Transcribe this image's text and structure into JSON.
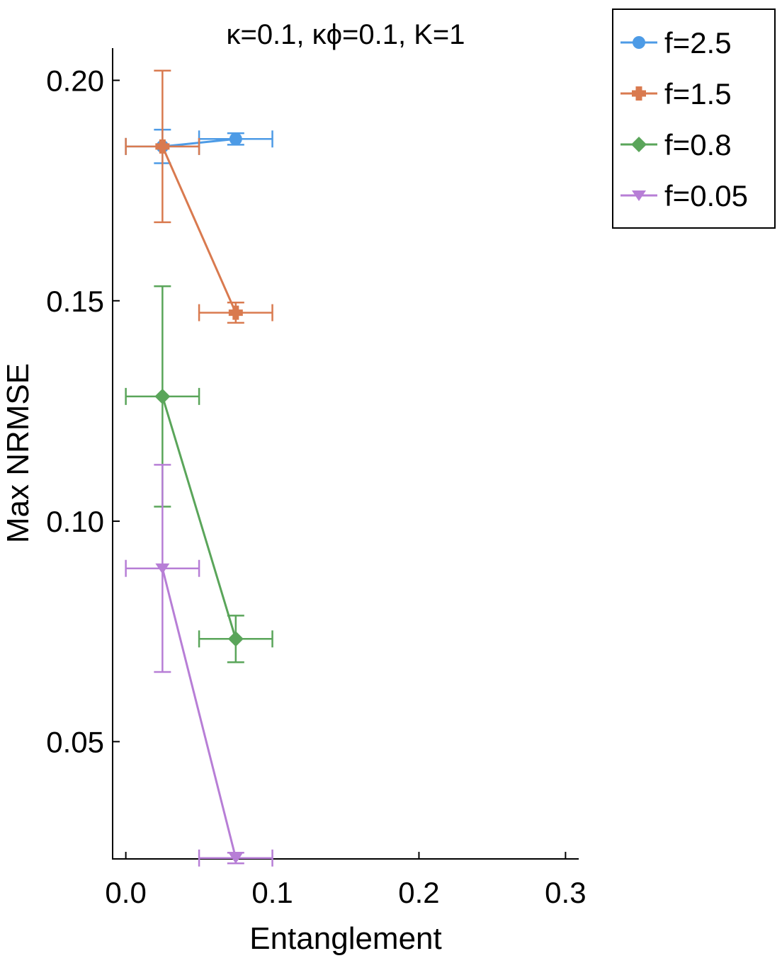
{
  "chart_data": {
    "type": "line",
    "title": "κ=0.1, κϕ=0.1, K=1",
    "xlabel": "Entanglement",
    "ylabel": "Max NRMSE",
    "xlim": [
      -0.009,
      0.309
    ],
    "ylim": [
      0.0234,
      0.2073
    ],
    "x_ticks": [
      0.0,
      0.1,
      0.2,
      0.3
    ],
    "x_tick_labels": [
      "0.0",
      "0.1",
      "0.2",
      "0.3"
    ],
    "y_ticks": [
      0.05,
      0.1,
      0.15,
      0.2
    ],
    "y_tick_labels": [
      "0.05",
      "0.10",
      "0.15",
      "0.20"
    ],
    "grid": false,
    "legend_position": "outside-top-right",
    "series": [
      {
        "name": "f=2.5",
        "color": "#4d9be6",
        "marker": "circle",
        "points": [
          {
            "x": 0.025,
            "y": 0.185,
            "xerr": 0.025,
            "yerr": 0.0038
          },
          {
            "x": 0.075,
            "y": 0.1867,
            "xerr": 0.025,
            "yerr": 0.0013
          }
        ]
      },
      {
        "name": "f=1.5",
        "color": "#d97a4f",
        "marker": "cross",
        "points": [
          {
            "x": 0.025,
            "y": 0.185,
            "xerr": 0.025,
            "yerr": 0.0172
          },
          {
            "x": 0.075,
            "y": 0.1473,
            "xerr": 0.025,
            "yerr": 0.0023
          }
        ]
      },
      {
        "name": "f=0.8",
        "color": "#5aa55a",
        "marker": "diamond",
        "points": [
          {
            "x": 0.025,
            "y": 0.1283,
            "xerr": 0.025,
            "yerr": 0.025
          },
          {
            "x": 0.075,
            "y": 0.0733,
            "xerr": 0.025,
            "yerr": 0.0053
          }
        ]
      },
      {
        "name": "f=0.05",
        "color": "#b77ed6",
        "marker": "triangle-down",
        "points": [
          {
            "x": 0.025,
            "y": 0.0893,
            "xerr": 0.025,
            "yerr": 0.0235
          },
          {
            "x": 0.075,
            "y": 0.0236,
            "xerr": 0.025,
            "yerr": 0.0012
          }
        ]
      }
    ]
  }
}
